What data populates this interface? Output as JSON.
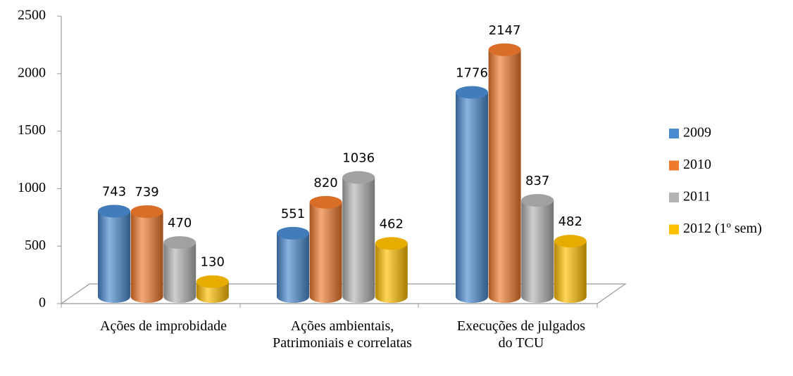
{
  "chart_data": {
    "type": "bar3d",
    "categories": [
      "Ações de improbidade",
      "Ações ambientais, Patrimoniais e correlatas",
      "Execuções de julgados do TCU"
    ],
    "series": [
      {
        "name": "2009",
        "color": "#4a8ad0",
        "values": [
          743,
          551,
          1776
        ]
      },
      {
        "name": "2010",
        "color": "#f07a2c",
        "values": [
          739,
          820,
          2147
        ]
      },
      {
        "name": "2011",
        "color": "#b3b3b3",
        "values": [
          470,
          1036,
          837
        ]
      },
      {
        "name": "2012 (1º sem)",
        "color": "#ffc000",
        "values": [
          130,
          462,
          482
        ]
      }
    ],
    "ylim": [
      0,
      2500
    ],
    "yticks": [
      0,
      500,
      1000,
      1500,
      2000,
      2500
    ],
    "legend": "right"
  }
}
